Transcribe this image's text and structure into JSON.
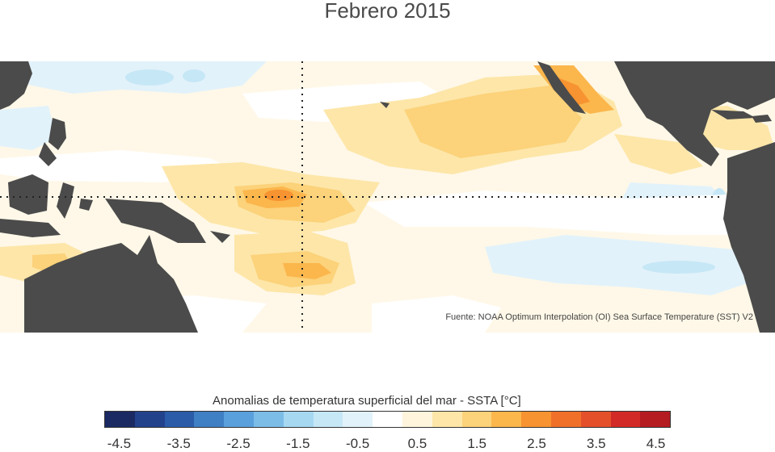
{
  "title": "Febrero 2015",
  "source_note": "Fuente: NOAA Optimum Interpolation (OI) Sea Surface Temperature (SST) V2",
  "legend": {
    "title": "Anomalias de temperatura superficial del mar - SSTA  [°C]",
    "ticks": [
      "-4.5",
      "-3.5",
      "-2.5",
      "-1.5",
      "-0.5",
      "0.5",
      "1.5",
      "2.5",
      "3.5",
      "4.5"
    ],
    "colors": [
      "#1b2a63",
      "#23428c",
      "#2a5ca8",
      "#3f7fc4",
      "#5aa0dc",
      "#7cbde8",
      "#a6d8f2",
      "#c6e7f6",
      "#e2f2fa",
      "#ffffff",
      "#fff5dc",
      "#fde6a8",
      "#fcd27a",
      "#fbb64c",
      "#f79330",
      "#f0702a",
      "#e4502a",
      "#d22a26",
      "#b41c22"
    ]
  },
  "colors": {
    "land": "#4b4b4b",
    "ocean_base": "#fff8e8",
    "guide_line": "#222222"
  }
}
